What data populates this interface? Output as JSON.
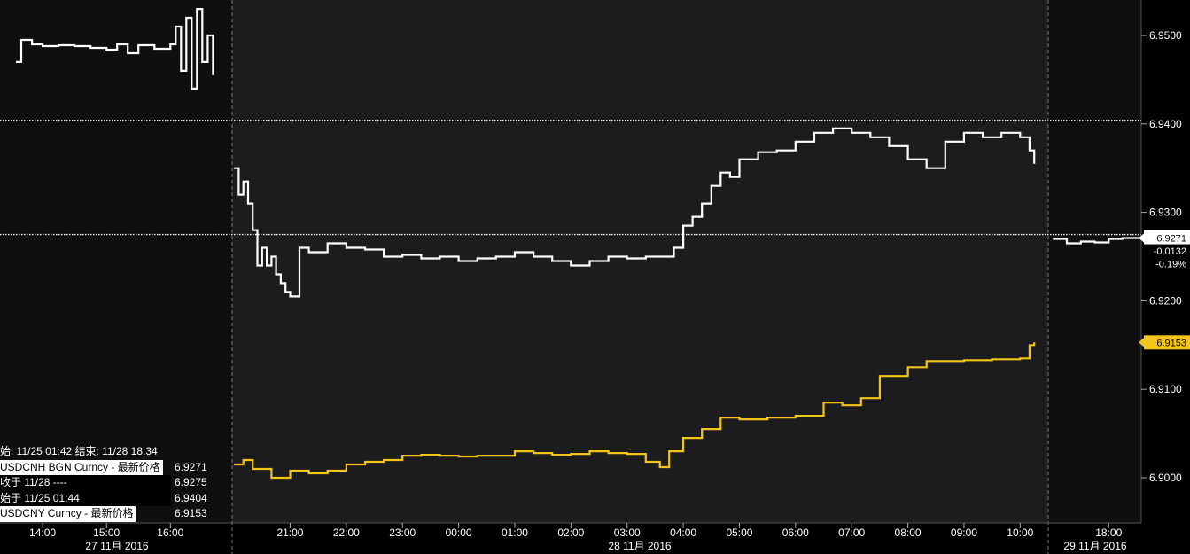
{
  "chart_data": {
    "type": "line",
    "ylim": [
      6.8945,
      6.9545
    ],
    "y_ticks": [
      "6.9500",
      "6.9400",
      "6.9300",
      "6.9200",
      "6.9100",
      "6.9000"
    ],
    "x_ticks": [
      "14:00",
      "15:00",
      "16:00",
      "21:00",
      "22:00",
      "23:00",
      "00:00",
      "01:00",
      "02:00",
      "03:00",
      "04:00",
      "05:00",
      "06:00",
      "07:00",
      "08:00",
      "09:00",
      "10:00",
      "18:00"
    ],
    "date_labels": [
      "27 11月 2016",
      "28 11月 2016",
      "29 11月 2016"
    ],
    "reference_lines": [
      6.9404,
      6.9275
    ],
    "series": [
      {
        "name": "USDCNH BGN Curncy",
        "color": "#ffffff",
        "segments": [
          [
            [
              "13:35",
              6.947
            ],
            [
              "13:40",
              6.9495
            ],
            [
              "13:50",
              6.949
            ],
            [
              "14:00",
              6.9488
            ],
            [
              "14:15",
              6.9489
            ],
            [
              "14:30",
              6.9488
            ],
            [
              "14:45",
              6.9486
            ],
            [
              "15:00",
              6.9484
            ],
            [
              "15:10",
              6.949
            ],
            [
              "15:20",
              6.948
            ],
            [
              "15:30",
              6.9489
            ],
            [
              "15:45",
              6.9485
            ],
            [
              "16:00",
              6.949
            ],
            [
              "16:05",
              6.951
            ],
            [
              "16:10",
              6.946
            ],
            [
              "16:15",
              6.952
            ],
            [
              "16:20",
              6.944
            ],
            [
              "16:25",
              6.953
            ],
            [
              "16:30",
              6.947
            ],
            [
              "16:35",
              6.95
            ],
            [
              "16:40",
              6.9455
            ]
          ],
          [
            [
              "20:00",
              6.935
            ],
            [
              "20:05",
              6.932
            ],
            [
              "20:10",
              6.9335
            ],
            [
              "20:15",
              6.931
            ],
            [
              "20:20",
              6.928
            ],
            [
              "20:25",
              6.924
            ],
            [
              "20:30",
              6.926
            ],
            [
              "20:35",
              6.924
            ],
            [
              "20:40",
              6.925
            ],
            [
              "20:45",
              6.923
            ],
            [
              "20:50",
              6.922
            ],
            [
              "20:55",
              6.921
            ],
            [
              "21:00",
              6.9205
            ],
            [
              "21:10",
              6.926
            ],
            [
              "21:20",
              6.9255
            ],
            [
              "21:40",
              6.9265
            ],
            [
              "22:00",
              6.926
            ],
            [
              "22:20",
              6.9258
            ],
            [
              "22:40",
              6.925
            ],
            [
              "23:00",
              6.9252
            ],
            [
              "23:20",
              6.9248
            ],
            [
              "23:40",
              6.925
            ],
            [
              "00:00",
              6.9245
            ],
            [
              "00:20",
              6.9248
            ],
            [
              "00:40",
              6.925
            ],
            [
              "01:00",
              6.9255
            ],
            [
              "01:20",
              6.925
            ],
            [
              "01:40",
              6.9245
            ],
            [
              "02:00",
              6.924
            ],
            [
              "02:20",
              6.9245
            ],
            [
              "02:40",
              6.925
            ],
            [
              "03:00",
              6.9248
            ],
            [
              "03:20",
              6.925
            ],
            [
              "03:40",
              6.925
            ],
            [
              "03:50",
              6.926
            ],
            [
              "04:00",
              6.9285
            ],
            [
              "04:10",
              6.9295
            ],
            [
              "04:20",
              6.931
            ],
            [
              "04:30",
              6.933
            ],
            [
              "04:40",
              6.9345
            ],
            [
              "04:50",
              6.934
            ],
            [
              "05:00",
              6.936
            ],
            [
              "05:20",
              6.9368
            ],
            [
              "05:40",
              6.937
            ],
            [
              "06:00",
              6.938
            ],
            [
              "06:20",
              6.939
            ],
            [
              "06:40",
              6.9395
            ],
            [
              "07:00",
              6.939
            ],
            [
              "07:20",
              6.9385
            ],
            [
              "07:40",
              6.9375
            ],
            [
              "08:00",
              6.936
            ],
            [
              "08:20",
              6.935
            ],
            [
              "08:40",
              6.938
            ],
            [
              "09:00",
              6.939
            ],
            [
              "09:20",
              6.9385
            ],
            [
              "09:40",
              6.939
            ],
            [
              "10:00",
              6.9385
            ],
            [
              "10:10",
              6.937
            ],
            [
              "10:15",
              6.9355
            ]
          ],
          [
            [
              "17:00",
              6.927
            ],
            [
              "17:15",
              6.9265
            ],
            [
              "17:30",
              6.9267
            ],
            [
              "17:45",
              6.9266
            ],
            [
              "18:00",
              6.927
            ],
            [
              "18:15",
              6.9271
            ],
            [
              "18:34",
              6.9271
            ]
          ]
        ]
      },
      {
        "name": "USDCNY Curncy",
        "color": "#f2c518",
        "segments": [
          [
            [
              "20:00",
              6.9015
            ],
            [
              "20:10",
              6.902
            ],
            [
              "20:20",
              6.901
            ],
            [
              "20:40",
              6.9
            ],
            [
              "21:00",
              6.9008
            ],
            [
              "21:20",
              6.9005
            ],
            [
              "21:40",
              6.9008
            ],
            [
              "22:00",
              6.9015
            ],
            [
              "22:20",
              6.9018
            ],
            [
              "22:40",
              6.902
            ],
            [
              "23:00",
              6.9025
            ],
            [
              "23:20",
              6.9026
            ],
            [
              "23:40",
              6.9025
            ],
            [
              "00:00",
              6.9024
            ],
            [
              "00:20",
              6.9025
            ],
            [
              "00:40",
              6.9025
            ],
            [
              "01:00",
              6.903
            ],
            [
              "01:20",
              6.9028
            ],
            [
              "01:40",
              6.9026
            ],
            [
              "02:00",
              6.9027
            ],
            [
              "02:20",
              6.903
            ],
            [
              "02:40",
              6.9028
            ],
            [
              "03:00",
              6.9027
            ],
            [
              "03:20",
              6.9018
            ],
            [
              "03:35",
              6.9012
            ],
            [
              "03:45",
              6.903
            ],
            [
              "04:00",
              6.9045
            ],
            [
              "04:20",
              6.9055
            ],
            [
              "04:40",
              6.9068
            ],
            [
              "05:00",
              6.9066
            ],
            [
              "05:30",
              6.9068
            ],
            [
              "06:00",
              6.907
            ],
            [
              "06:30",
              6.9085
            ],
            [
              "06:50",
              6.9082
            ],
            [
              "07:10",
              6.909
            ],
            [
              "07:30",
              6.9115
            ],
            [
              "08:00",
              6.9125
            ],
            [
              "08:20",
              6.9132
            ],
            [
              "09:00",
              6.9133
            ],
            [
              "09:30",
              6.9134
            ],
            [
              "10:00",
              6.9135
            ],
            [
              "10:10",
              6.915
            ],
            [
              "10:15",
              6.9153
            ]
          ]
        ]
      }
    ],
    "last_labels": [
      {
        "text": "6.9271",
        "series": "USDCNH BGN Curncy"
      },
      {
        "text": "-0.0132",
        "series": "USDCNH BGN Curncy"
      },
      {
        "text": "-0.19%",
        "series": "USDCNH BGN Curncy"
      },
      {
        "text": "6.9153",
        "series": "USDCNY Curncy"
      }
    ]
  },
  "legend": {
    "header": "始: 11/25 01:42 结束: 11/28 18:34",
    "rows": [
      {
        "label": "USDCNH BGN Curncy - 最新价格",
        "value": "6.9271"
      },
      {
        "label": "收于 11/28 ----",
        "value": "6.9275"
      },
      {
        "label": "始于 11/25 01:44",
        "value": "6.9404"
      },
      {
        "label": "USDCNY Curncy - 最新价格",
        "value": "6.9153"
      }
    ]
  },
  "colors": {
    "background_session": "#1c1c1e",
    "background_offhours": "#0f0f10",
    "white_series": "#ffffff",
    "yellow_series": "#f2c518"
  }
}
